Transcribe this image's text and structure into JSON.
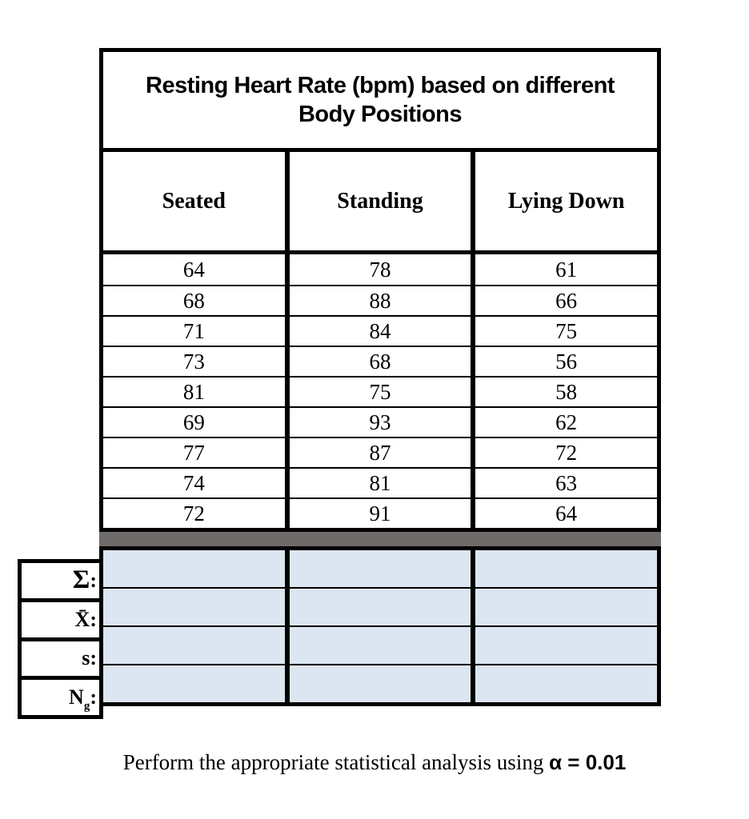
{
  "table": {
    "title_lines": [
      "Resting Heart Rate (bpm) based on different",
      "Body Positions"
    ],
    "columns": [
      "Seated",
      "Standing",
      "Lying Down"
    ],
    "rows": [
      [
        "64",
        "78",
        "61"
      ],
      [
        "68",
        "88",
        "66"
      ],
      [
        "71",
        "84",
        "75"
      ],
      [
        "73",
        "68",
        "56"
      ],
      [
        "81",
        "75",
        "58"
      ],
      [
        "69",
        "93",
        "62"
      ],
      [
        "77",
        "87",
        "72"
      ],
      [
        "74",
        "81",
        "63"
      ],
      [
        "72",
        "91",
        "64"
      ]
    ],
    "summary": {
      "rows": [
        {
          "symbol": "Σ",
          "sub": "",
          "colon": ":",
          "values": [
            "",
            "",
            ""
          ]
        },
        {
          "symbol": "X̄",
          "sub": "",
          "colon": ":",
          "values": [
            "",
            "",
            ""
          ]
        },
        {
          "symbol": "s",
          "sub": "",
          "colon": ":",
          "values": [
            "",
            "",
            ""
          ]
        },
        {
          "symbol": "N",
          "sub": "g",
          "colon": ":",
          "values": [
            "",
            "",
            ""
          ]
        }
      ]
    }
  },
  "caption": {
    "text": "Perform the appropriate statistical analysis using ",
    "bold": "α = 0.01"
  },
  "colors": {
    "border": "#000000",
    "answer_cell_fill": "#dce6f1",
    "divider_bar_fill": "#6f6b6b",
    "background": "#ffffff"
  }
}
